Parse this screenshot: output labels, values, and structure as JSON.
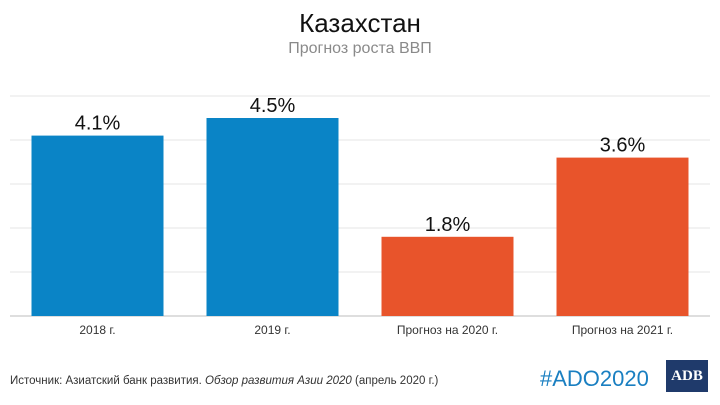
{
  "header": {
    "title": "Казахстан",
    "subtitle": "Прогноз роста ВВП"
  },
  "chart_data": {
    "type": "bar",
    "title": "Казахстан",
    "subtitle": "Прогноз роста ВВП",
    "categories": [
      "2018 г.",
      "2019 г.",
      "Прогноз на 2020 г.",
      "Прогноз на 2021 г."
    ],
    "values": [
      4.1,
      4.5,
      1.8,
      3.6
    ],
    "value_labels": [
      "4.1%",
      "4.5%",
      "1.8%",
      "3.6%"
    ],
    "bar_colors": [
      "#0a84c6",
      "#0a84c6",
      "#e8542b",
      "#e8542b"
    ],
    "ylim": [
      0,
      5
    ],
    "grid": true,
    "xlabel": "",
    "ylabel": ""
  },
  "footer": {
    "source_prefix": "Источник: Азиатский банк развития. ",
    "source_title": "Обзор развития Азии 2020",
    "source_suffix": " (апрель 2020 г.)",
    "hashtag": "#ADO2020",
    "logo_text": "ADB"
  },
  "colors": {
    "accent_blue": "#0a84c6",
    "accent_orange": "#e8542b",
    "hashtag_blue": "#1a7fc1",
    "logo_navy": "#1f3a6b"
  }
}
